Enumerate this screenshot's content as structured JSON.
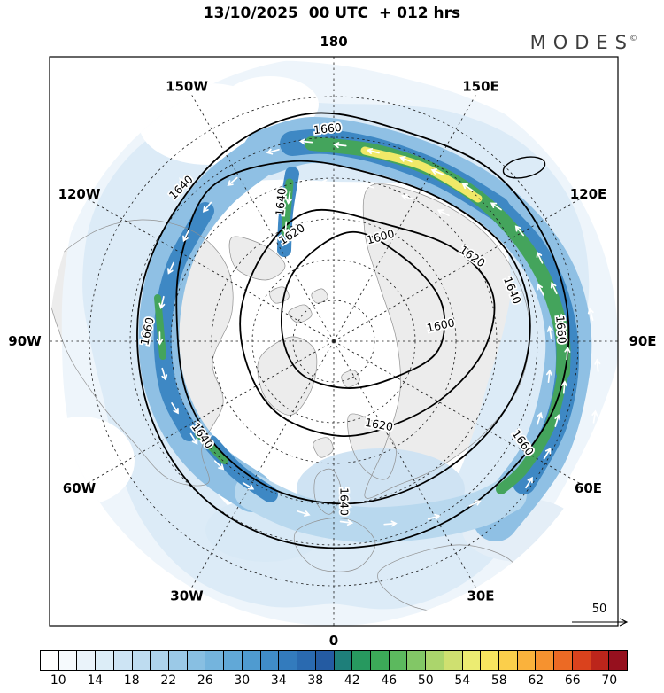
{
  "header": {
    "title": "13/10/2025  00 UTC  + 012 hrs",
    "brand": "MODES",
    "brand_mark": "©"
  },
  "chart_data": {
    "type": "heatmap",
    "subtype": "north-polar-stereographic-contour-map",
    "title": "13/10/2025  00 UTC  + 012 hrs",
    "legend_position": "bottom",
    "grid": "dashed polar graticule, meridians every 30 deg",
    "longitude_labels": [
      {
        "text": "180",
        "deg": 180
      },
      {
        "text": "150E",
        "deg": 150
      },
      {
        "text": "120E",
        "deg": 120
      },
      {
        "text": "90E",
        "deg": 90
      },
      {
        "text": "60E",
        "deg": 60
      },
      {
        "text": "30E",
        "deg": 30
      },
      {
        "text": "0",
        "deg": 0
      },
      {
        "text": "30W",
        "deg": -30
      },
      {
        "text": "60W",
        "deg": -60
      },
      {
        "text": "90W",
        "deg": -90
      },
      {
        "text": "120W",
        "deg": -120
      },
      {
        "text": "150W",
        "deg": -150
      }
    ],
    "contour_levels": [
      1600,
      1620,
      1640,
      1660
    ],
    "contour_label_instances": [
      "1660",
      "1640",
      "1600",
      "1620",
      "1620",
      "1640",
      "1600",
      "1660",
      "1660",
      "1620",
      "1640",
      "1660",
      "1640",
      "1640"
    ],
    "colorbar": {
      "min": 10,
      "max": 70,
      "step": 2,
      "labels": [
        "10",
        "14",
        "18",
        "22",
        "26",
        "30",
        "34",
        "38",
        "42",
        "46",
        "50",
        "54",
        "58",
        "62",
        "66",
        "70"
      ],
      "colors": [
        "#ffffff",
        "#f6fafd",
        "#eaf3fa",
        "#dcedf7",
        "#cde4f4",
        "#bedcf0",
        "#add3ec",
        "#9bc9e7",
        "#88bfe2",
        "#74b4dd",
        "#61a8d7",
        "#4f9bd0",
        "#408cc8",
        "#337bbd",
        "#2a6ab0",
        "#245ba2",
        "#1e7f7a",
        "#27995f",
        "#3caa58",
        "#5cb95e",
        "#82c766",
        "#abd56c",
        "#cfe070",
        "#ecec72",
        "#f8e55f",
        "#fbcf4b",
        "#fab23c",
        "#f6922f",
        "#ec6a24",
        "#da421d",
        "#bc251b",
        "#96101e"
      ]
    },
    "band_colors": {
      "outer": "#eef5fb",
      "light": "#dcebf7",
      "pale": "#b8d8ee",
      "mid": "#8fc0e4",
      "deep": "#3e88c4",
      "green": "#44a45c",
      "yellow": "#f0e968"
    },
    "shaded_field_summary": {
      "background_range": [
        10,
        30
      ],
      "main_band_range": [
        30,
        46
      ],
      "jet_core_range": [
        46,
        62
      ],
      "jet_core_location": "arc from 150W across 180 to 120E-60E sector"
    },
    "wind_reference_value": "50",
    "arrow_color": "#ffffff"
  }
}
